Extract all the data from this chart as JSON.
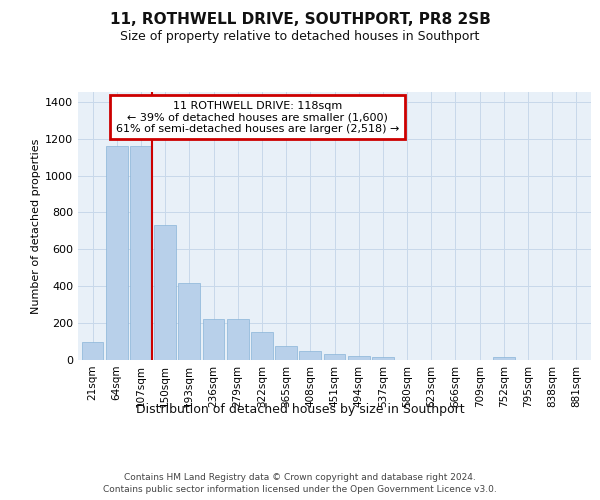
{
  "title": "11, ROTHWELL DRIVE, SOUTHPORT, PR8 2SB",
  "subtitle": "Size of property relative to detached houses in Southport",
  "xlabel": "Distribution of detached houses by size in Southport",
  "ylabel": "Number of detached properties",
  "footer_line1": "Contains HM Land Registry data © Crown copyright and database right 2024.",
  "footer_line2": "Contains public sector information licensed under the Open Government Licence v3.0.",
  "bar_labels": [
    "21sqm",
    "64sqm",
    "107sqm",
    "150sqm",
    "193sqm",
    "236sqm",
    "279sqm",
    "322sqm",
    "365sqm",
    "408sqm",
    "451sqm",
    "494sqm",
    "537sqm",
    "580sqm",
    "623sqm",
    "666sqm",
    "709sqm",
    "752sqm",
    "795sqm",
    "838sqm",
    "881sqm"
  ],
  "bar_values": [
    100,
    1160,
    1160,
    730,
    420,
    220,
    220,
    150,
    75,
    50,
    35,
    20,
    15,
    0,
    0,
    0,
    0,
    15,
    0,
    0,
    0
  ],
  "bar_color": "#b8d0ea",
  "bar_edge_color": "#8ab4d8",
  "grid_color": "#c8d8ea",
  "background_color": "#e8f0f8",
  "annotation_text": "11 ROTHWELL DRIVE: 118sqm\n← 39% of detached houses are smaller (1,600)\n61% of semi-detached houses are larger (2,518) →",
  "annotation_box_facecolor": "#ffffff",
  "annotation_box_edgecolor": "#cc0000",
  "vline_color": "#cc0000",
  "vline_bar_idx": 2,
  "ylim": [
    0,
    1450
  ],
  "yticks": [
    0,
    200,
    400,
    600,
    800,
    1000,
    1200,
    1400
  ],
  "title_fontsize": 11,
  "subtitle_fontsize": 9,
  "xlabel_fontsize": 9,
  "ylabel_fontsize": 8,
  "tick_fontsize": 8,
  "xtick_fontsize": 7.5,
  "footer_fontsize": 6.5,
  "annotation_fontsize": 8
}
